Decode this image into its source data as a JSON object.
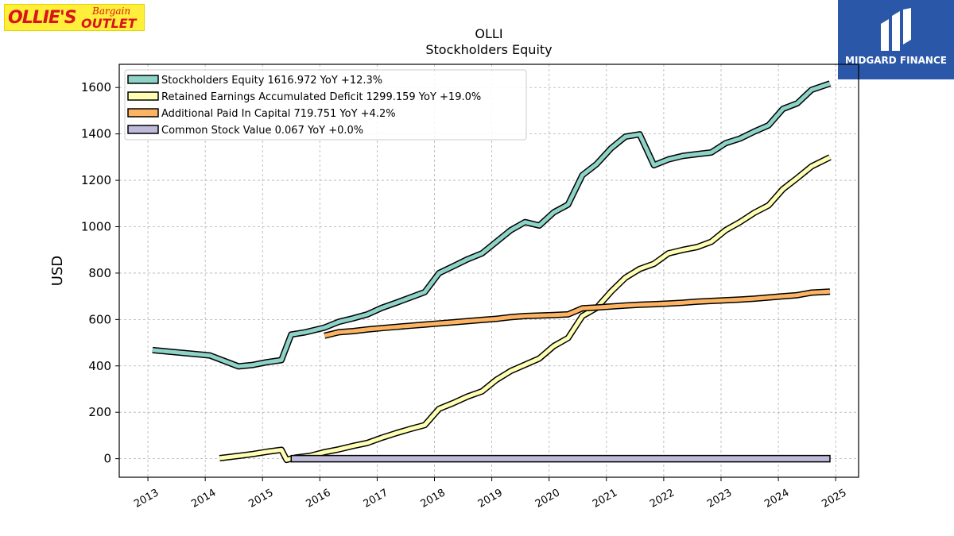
{
  "logo": {
    "part1": "OLLIE'S",
    "part2": "Bargain",
    "part3": "OUTLET"
  },
  "watermark": {
    "label": "MIDGARD FINANCE",
    "color": "#2a57a8"
  },
  "chart_data": {
    "type": "line",
    "title": "OLLI",
    "subtitle": "Stockholders  Equity",
    "xlabel": "",
    "ylabel": "USD",
    "xlim": [
      2012.5,
      2025.4
    ],
    "ylim": [
      -80,
      1700
    ],
    "x_ticks": [
      "2013",
      "2014",
      "2015",
      "2016",
      "2017",
      "2018",
      "2019",
      "2020",
      "2021",
      "2022",
      "2023",
      "2024",
      "2025"
    ],
    "y_ticks": [
      0,
      200,
      400,
      600,
      800,
      1000,
      1200,
      1400,
      1600
    ],
    "grid": true,
    "legend_position": "top-left",
    "series": [
      {
        "name": "Stockholders Equity  1616.972 YoY +12.3%",
        "color": "#8dd3c7",
        "points": [
          [
            2013.08,
            468
          ],
          [
            2014.08,
            445
          ],
          [
            2014.58,
            398
          ],
          [
            2014.83,
            404
          ],
          [
            2015.08,
            416
          ],
          [
            2015.33,
            425
          ],
          [
            2015.5,
            535
          ],
          [
            2015.75,
            545
          ],
          [
            2016.08,
            565
          ],
          [
            2016.33,
            590
          ],
          [
            2016.58,
            605
          ],
          [
            2016.83,
            622
          ],
          [
            2017.08,
            650
          ],
          [
            2017.33,
            672
          ],
          [
            2017.58,
            695
          ],
          [
            2017.83,
            718
          ],
          [
            2018.08,
            800
          ],
          [
            2018.33,
            830
          ],
          [
            2018.58,
            860
          ],
          [
            2018.83,
            885
          ],
          [
            2019.08,
            935
          ],
          [
            2019.33,
            985
          ],
          [
            2019.58,
            1020
          ],
          [
            2019.83,
            1005
          ],
          [
            2020.08,
            1062
          ],
          [
            2020.33,
            1095
          ],
          [
            2020.58,
            1222
          ],
          [
            2020.83,
            1270
          ],
          [
            2021.08,
            1338
          ],
          [
            2021.33,
            1388
          ],
          [
            2021.58,
            1398
          ],
          [
            2021.83,
            1265
          ],
          [
            2022.08,
            1290
          ],
          [
            2022.33,
            1305
          ],
          [
            2022.58,
            1313
          ],
          [
            2022.83,
            1320
          ],
          [
            2023.08,
            1360
          ],
          [
            2023.33,
            1380
          ],
          [
            2023.58,
            1410
          ],
          [
            2023.83,
            1437
          ],
          [
            2024.08,
            1508
          ],
          [
            2024.33,
            1532
          ],
          [
            2024.58,
            1590
          ],
          [
            2024.9,
            1617
          ]
        ]
      },
      {
        "name": "Retained Earnings Accumulated Deficit  1299.159 YoY +19.0%",
        "color": "#ffffb3",
        "points": [
          [
            2014.25,
            2
          ],
          [
            2014.58,
            12
          ],
          [
            2014.83,
            20
          ],
          [
            2015.08,
            30
          ],
          [
            2015.33,
            38
          ],
          [
            2015.42,
            -5
          ],
          [
            2015.58,
            5
          ],
          [
            2015.83,
            12
          ],
          [
            2016.08,
            28
          ],
          [
            2016.33,
            40
          ],
          [
            2016.58,
            55
          ],
          [
            2016.83,
            68
          ],
          [
            2017.08,
            90
          ],
          [
            2017.33,
            110
          ],
          [
            2017.58,
            128
          ],
          [
            2017.83,
            145
          ],
          [
            2018.08,
            215
          ],
          [
            2018.33,
            240
          ],
          [
            2018.58,
            268
          ],
          [
            2018.83,
            290
          ],
          [
            2019.08,
            340
          ],
          [
            2019.33,
            378
          ],
          [
            2019.58,
            405
          ],
          [
            2019.83,
            432
          ],
          [
            2020.08,
            485
          ],
          [
            2020.33,
            520
          ],
          [
            2020.58,
            615
          ],
          [
            2020.83,
            650
          ],
          [
            2021.08,
            720
          ],
          [
            2021.33,
            780
          ],
          [
            2021.58,
            818
          ],
          [
            2021.83,
            840
          ],
          [
            2022.08,
            885
          ],
          [
            2022.33,
            900
          ],
          [
            2022.58,
            912
          ],
          [
            2022.83,
            935
          ],
          [
            2023.08,
            985
          ],
          [
            2023.33,
            1020
          ],
          [
            2023.58,
            1060
          ],
          [
            2023.83,
            1092
          ],
          [
            2024.08,
            1162
          ],
          [
            2024.33,
            1210
          ],
          [
            2024.58,
            1260
          ],
          [
            2024.9,
            1299
          ]
        ]
      },
      {
        "name": "Additional Paid In Capital  719.751 YoY +4.2%",
        "color": "#fdb462",
        "points": [
          [
            2016.08,
            530
          ],
          [
            2016.33,
            545
          ],
          [
            2016.58,
            550
          ],
          [
            2016.83,
            557
          ],
          [
            2017.08,
            563
          ],
          [
            2017.33,
            568
          ],
          [
            2017.58,
            573
          ],
          [
            2017.83,
            578
          ],
          [
            2018.08,
            583
          ],
          [
            2018.33,
            588
          ],
          [
            2018.58,
            593
          ],
          [
            2018.83,
            598
          ],
          [
            2019.08,
            603
          ],
          [
            2019.33,
            610
          ],
          [
            2019.58,
            615
          ],
          [
            2019.83,
            617
          ],
          [
            2020.08,
            619
          ],
          [
            2020.33,
            622
          ],
          [
            2020.58,
            648
          ],
          [
            2020.83,
            652
          ],
          [
            2021.08,
            656
          ],
          [
            2021.33,
            660
          ],
          [
            2021.58,
            664
          ],
          [
            2021.83,
            666
          ],
          [
            2022.08,
            669
          ],
          [
            2022.33,
            672
          ],
          [
            2022.58,
            677
          ],
          [
            2022.83,
            680
          ],
          [
            2023.08,
            683
          ],
          [
            2023.33,
            686
          ],
          [
            2023.58,
            690
          ],
          [
            2023.83,
            695
          ],
          [
            2024.08,
            700
          ],
          [
            2024.33,
            705
          ],
          [
            2024.58,
            716
          ],
          [
            2024.9,
            720
          ]
        ]
      },
      {
        "name": "Common Stock Value  0.067 YoY +0.0%",
        "color": "#bebada",
        "points": [
          [
            2015.5,
            0
          ],
          [
            2024.9,
            0
          ]
        ],
        "band": true
      }
    ]
  }
}
